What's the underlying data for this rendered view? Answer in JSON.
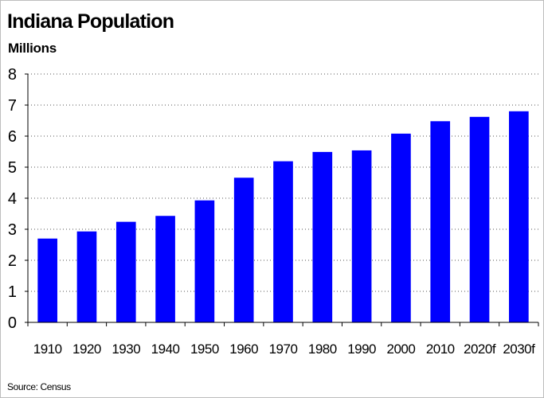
{
  "chart_data": {
    "type": "bar",
    "title": "Indiana Population",
    "ylabel": "Millions",
    "xlabel": "",
    "source": "Source: Census",
    "categories": [
      "1910",
      "1920",
      "1930",
      "1940",
      "1950",
      "1960",
      "1970",
      "1980",
      "1990",
      "2000",
      "2010",
      "2020f",
      "2030f"
    ],
    "values": [
      2.7,
      2.93,
      3.24,
      3.43,
      3.93,
      4.66,
      5.19,
      5.49,
      5.54,
      6.08,
      6.48,
      6.62,
      6.8
    ],
    "ylim": [
      0,
      8
    ],
    "yticks": [
      0,
      1,
      2,
      3,
      4,
      5,
      6,
      7,
      8
    ],
    "grid": true,
    "legend": "none",
    "bar_color": "#0000ff"
  }
}
